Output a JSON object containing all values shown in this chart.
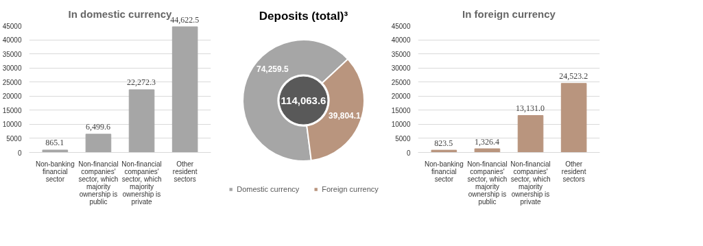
{
  "chart_data": [
    {
      "type": "bar",
      "title": "In domestic currency",
      "categories": [
        "Non-banking financial sector",
        "Non-financial companies' sector, which majority ownership is public",
        "Non-financial companies' sector, which majority ownership is private",
        "Other resident sectors"
      ],
      "values": [
        865.1,
        6499.6,
        22272.3,
        44622.5
      ],
      "value_labels": [
        "865.1",
        "6,499.6",
        "22,272.3",
        "44,622.5"
      ],
      "color": "#a6a6a6",
      "ylim": [
        0,
        45000
      ],
      "yticks": [
        0,
        5000,
        10000,
        15000,
        20000,
        25000,
        30000,
        35000,
        40000,
        45000
      ],
      "grid": "y"
    },
    {
      "type": "donut",
      "title": "Deposits (total)³",
      "categories": [
        "Domestic currency",
        "Foreign currency"
      ],
      "values": [
        74259.5,
        39804.1
      ],
      "colors": [
        "#a6a6a6",
        "#b9957e"
      ],
      "value_labels": [
        "74,259.5",
        "39,804.1"
      ],
      "annotations": [
        "114,063.6"
      ],
      "legend": "bottom"
    },
    {
      "type": "bar",
      "title": "In foreign currency",
      "categories": [
        "Non-banking financial sector",
        "Non-financial companies' sector, which majority ownership is public",
        "Non-financial companies' sector, which majority ownership is private",
        "Other resident sectors"
      ],
      "values": [
        823.5,
        1326.4,
        13131.0,
        24523.2
      ],
      "value_labels": [
        "823.5",
        "1,326.4",
        "13,131.0",
        "24,523.2"
      ],
      "color": "#b9957e",
      "ylim": [
        0,
        45000
      ],
      "yticks": [
        0,
        5000,
        10000,
        15000,
        20000,
        25000,
        30000,
        35000,
        40000,
        45000
      ],
      "grid": "y"
    }
  ]
}
